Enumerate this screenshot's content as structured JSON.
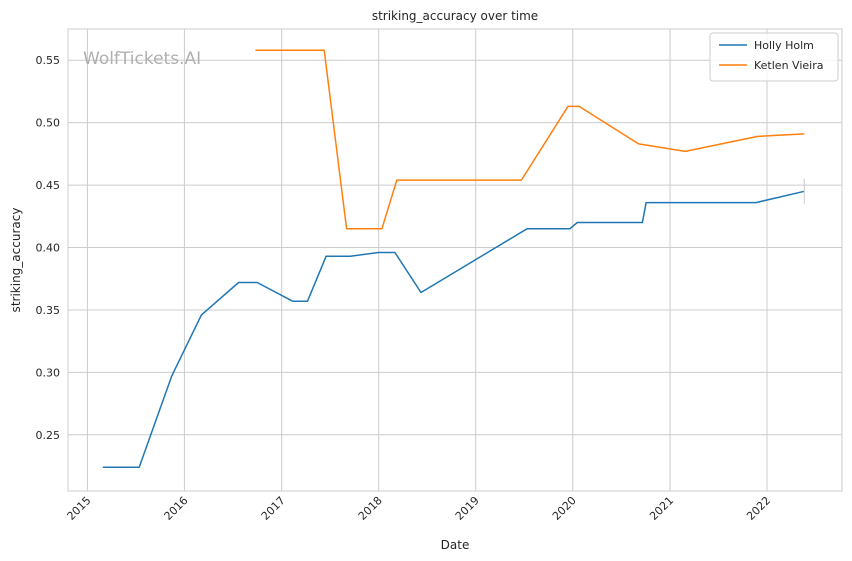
{
  "chart_data": {
    "type": "line",
    "title": "striking_accuracy over time",
    "xlabel": "Date",
    "ylabel": "striking_accuracy",
    "watermark": "WolfTickets.AI",
    "x_ticks": [
      "2015",
      "2016",
      "2017",
      "2018",
      "2019",
      "2020",
      "2021",
      "2022"
    ],
    "y_ticks": [
      "0.25",
      "0.30",
      "0.35",
      "0.40",
      "0.45",
      "0.50",
      "0.55"
    ],
    "xlim": [
      "2014-10-20",
      "2022-10-10"
    ],
    "ylim": [
      0.205,
      0.575
    ],
    "grid": true,
    "legend_position": "top-right",
    "series": [
      {
        "name": "Holly Holm",
        "color": "#1f77b4",
        "points": [
          [
            "2015-02-28",
            0.224
          ],
          [
            "2015-07-15",
            0.224
          ],
          [
            "2015-11-14",
            0.297
          ],
          [
            "2016-03-05",
            0.346
          ],
          [
            "2016-07-23",
            0.372
          ],
          [
            "2016-10-01",
            0.372
          ],
          [
            "2017-02-11",
            0.357
          ],
          [
            "2017-04-08",
            0.357
          ],
          [
            "2017-06-17",
            0.393
          ],
          [
            "2017-09-16",
            0.393
          ],
          [
            "2017-12-30",
            0.396
          ],
          [
            "2018-03-03",
            0.396
          ],
          [
            "2018-06-09",
            0.364
          ],
          [
            "2019-07-13",
            0.415
          ],
          [
            "2019-12-21",
            0.415
          ],
          [
            "2020-01-18",
            0.42
          ],
          [
            "2020-09-19",
            0.42
          ],
          [
            "2020-10-03",
            0.436
          ],
          [
            "2021-11-20",
            0.436
          ],
          [
            "2022-05-21",
            0.445
          ]
        ]
      },
      {
        "name": "Ketlen Vieira",
        "color": "#ff7f0e",
        "points": [
          [
            "2016-09-24",
            0.558
          ],
          [
            "2017-06-10",
            0.558
          ],
          [
            "2017-09-02",
            0.415
          ],
          [
            "2018-01-13",
            0.415
          ],
          [
            "2018-03-10",
            0.454
          ],
          [
            "2019-06-22",
            0.454
          ],
          [
            "2019-12-14",
            0.513
          ],
          [
            "2020-01-25",
            0.513
          ],
          [
            "2020-09-05",
            0.483
          ],
          [
            "2021-02-27",
            0.477
          ],
          [
            "2021-11-27",
            0.489
          ],
          [
            "2022-05-21",
            0.491
          ]
        ]
      }
    ]
  }
}
